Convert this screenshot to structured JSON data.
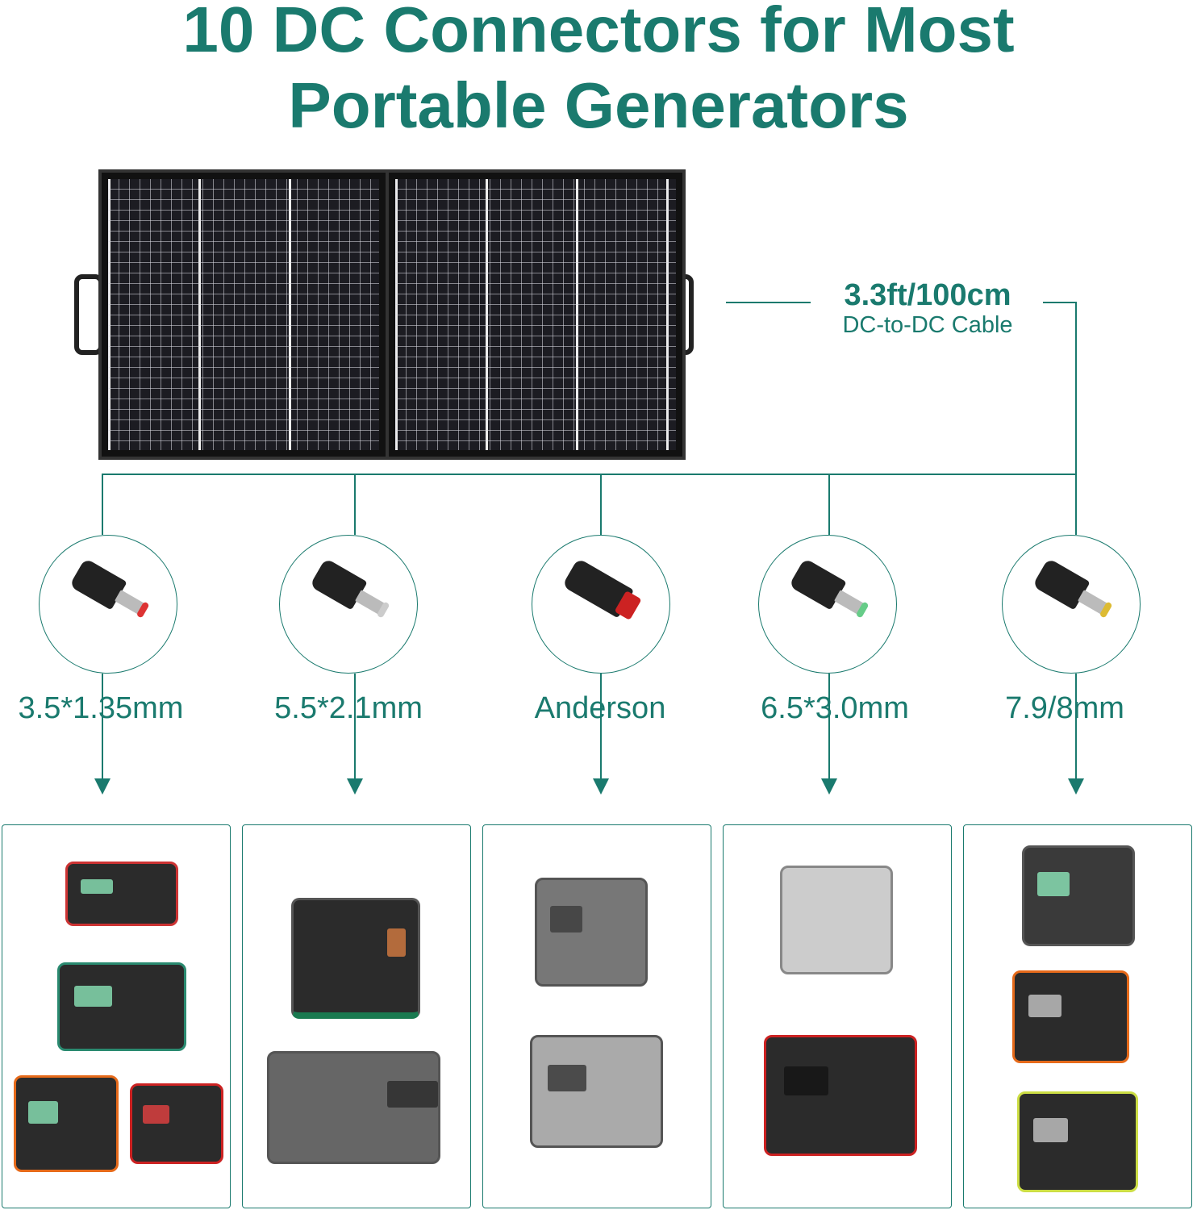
{
  "title": {
    "line1": "10 DC Connectors for Most",
    "line2": "Portable Generators"
  },
  "cable": {
    "length": "3.3ft/100cm",
    "description": "DC-to-DC Cable"
  },
  "connectors": [
    {
      "label": "3.5*1.35mm",
      "tip_color": "#d33"
    },
    {
      "label": "5.5*2.1mm",
      "tip_color": "#ccc"
    },
    {
      "label": "Anderson",
      "tip_color": "#c22"
    },
    {
      "label": "6.5*3.0mm",
      "tip_color": "#6c8"
    },
    {
      "label": "7.9/8mm",
      "tip_color": "#db3"
    }
  ],
  "colors": {
    "accent": "#1a7a6e"
  }
}
